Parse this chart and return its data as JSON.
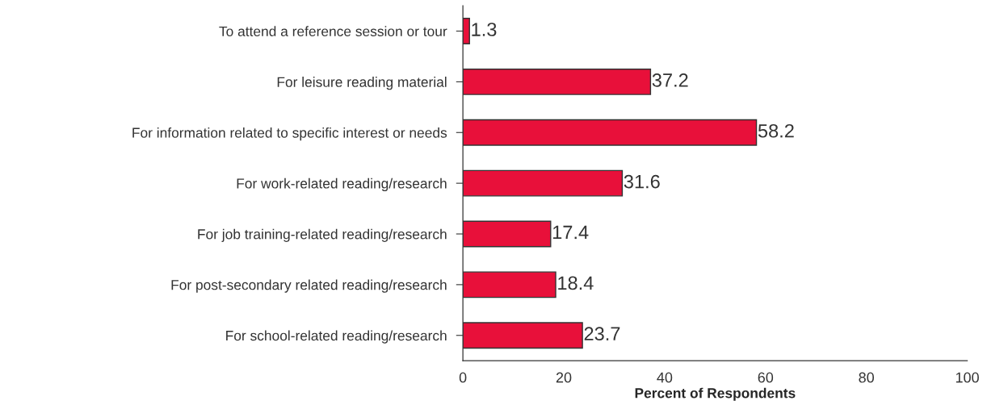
{
  "chart_data": {
    "type": "bar",
    "orientation": "horizontal",
    "categories": [
      "To attend a reference session or tour",
      "For leisure reading material",
      "For information related to specific interest or needs",
      "For work-related reading/research",
      "For job training-related reading/research",
      "For post-secondary related reading/research",
      "For school-related reading/research"
    ],
    "values": [
      1.3,
      37.2,
      58.2,
      31.6,
      17.4,
      18.4,
      23.7
    ],
    "color": "#e8103a",
    "xlabel": "Percent of Respondents",
    "xlim": [
      0,
      100
    ],
    "xticks": [
      0,
      20,
      40,
      60,
      80,
      100
    ],
    "data_labels": true,
    "grid": false,
    "legend": false
  }
}
